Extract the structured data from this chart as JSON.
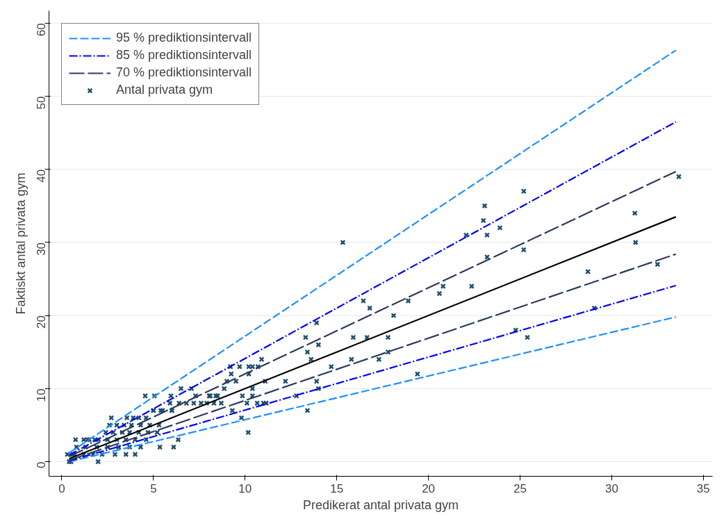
{
  "chart_data": {
    "type": "scatter",
    "xlabel": "Predikerat antal privata gym",
    "ylabel": "Faktiskt antal privata gym",
    "xlim": [
      -0.7,
      35.5
    ],
    "ylim": [
      -2,
      61.7
    ],
    "xticks": [
      0,
      5,
      10,
      15,
      20,
      25,
      30,
      35
    ],
    "yticks": [
      0,
      10,
      20,
      30,
      40,
      50,
      60
    ],
    "grid": "y",
    "legend": "top left",
    "series": [
      {
        "name": "95 % prediktionsintervall",
        "type": "line",
        "line_style": "dashed",
        "color": "#1e90ff",
        "x": [
          0.4,
          33.5
        ],
        "values": [
          1.2,
          56.3
        ]
      },
      {
        "type": "line",
        "line_style": "dashed",
        "color": "#1e90ff",
        "x": [
          0.4,
          33.5
        ],
        "values": [
          0,
          19.8
        ]
      },
      {
        "name": "85 % prediktionsintervall",
        "type": "line",
        "line_style": "dashdot",
        "color": "#0000ff",
        "x": [
          0.4,
          33.5
        ],
        "values": [
          0.9,
          46.5
        ]
      },
      {
        "type": "line",
        "line_style": "dashdot",
        "color": "#0000ff",
        "x": [
          0.4,
          33.5
        ],
        "values": [
          0.1,
          24.1
        ]
      },
      {
        "name": "70 % prediktionsintervall",
        "type": "line",
        "line_style": "longdash",
        "color": "#2a3a5c",
        "x": [
          0.4,
          33.5
        ],
        "values": [
          0.7,
          39.7
        ]
      },
      {
        "type": "line",
        "line_style": "longdash",
        "color": "#2a3a5c",
        "x": [
          0.4,
          33.5
        ],
        "values": [
          0.2,
          28.4
        ]
      },
      {
        "type": "line",
        "line_style": "solid",
        "color": "#000000",
        "x": [
          0.4,
          33.5
        ],
        "values": [
          0.4,
          33.5
        ]
      },
      {
        "name": "Antal privata gym",
        "marker": "cross",
        "color": "#1f4e6e",
        "x": [
          15.33,
          22.06,
          23.07,
          23.0,
          23.2,
          23.2,
          23.9,
          25.2,
          25.2,
          33.66,
          31.26,
          31.3,
          32.5,
          28.7,
          29.05,
          24.76,
          25.4,
          22.36,
          20.8,
          20.6,
          18.9,
          18.1,
          16.45,
          16.8,
          16.65,
          15.9,
          15.8,
          17.3,
          17.8,
          17.8,
          19.4,
          14.7,
          13.9,
          14.0,
          13.3,
          13.4,
          13.6,
          13.9,
          14.0,
          13.4,
          12.8,
          12.2,
          11.1,
          11.0,
          10.66,
          10.9,
          10.7,
          10.4,
          10.2,
          10.2,
          10.17,
          10.4,
          10.4,
          9.85,
          9.7,
          9.2,
          9.24,
          9.0,
          9.5,
          9.3,
          8.86,
          8.04,
          8.4,
          8.3,
          8.7,
          10.1,
          11.15,
          9.8,
          4.55,
          5.05,
          5.95,
          6.5,
          7.07,
          7.3,
          8.1,
          8.5,
          5.9,
          5.0,
          5.4,
          6.0,
          6.4,
          6.8,
          7.2,
          7.6,
          7.9,
          2.7,
          3.55,
          3.9,
          4.2,
          4.6,
          5.0,
          5.5,
          6.0,
          2.6,
          3.0,
          3.4,
          3.8,
          4.3,
          4.8,
          5.3,
          2.4,
          2.8,
          3.3,
          3.7,
          4.2,
          4.7,
          5.2,
          1.5,
          2.0,
          2.5,
          3.0,
          3.5,
          4.0,
          4.6,
          0.75,
          1.2,
          1.4,
          1.8,
          0.8,
          1.3,
          1.9,
          2.5,
          3.1,
          3.7,
          4.3,
          5.35,
          6.1,
          6.35,
          0.3,
          0.7,
          1.2,
          1.7,
          2.2,
          2.9,
          4.0,
          3.5,
          1.98,
          0.4,
          0.5,
          0.6
        ],
        "values": [
          30,
          31,
          35,
          33,
          31,
          28,
          32,
          37,
          29,
          39,
          34,
          30,
          27,
          26,
          21,
          18,
          17,
          24,
          24,
          23,
          22,
          20,
          22,
          21,
          17,
          17,
          14,
          14,
          17,
          15,
          12,
          13,
          19,
          16,
          17,
          15,
          14,
          11,
          10,
          7,
          9,
          11,
          11,
          8,
          8,
          14,
          13,
          13,
          12,
          13,
          4,
          9,
          10,
          9,
          13,
          13,
          12,
          11,
          11,
          7,
          10,
          9,
          9,
          8,
          8,
          8,
          8,
          6,
          9,
          9,
          9,
          10,
          10,
          9,
          9,
          9,
          8,
          7,
          7,
          7,
          8,
          8,
          8,
          8,
          8,
          6,
          6,
          6,
          6,
          6,
          7,
          7,
          7,
          5,
          5,
          5,
          5,
          5,
          5,
          5,
          4,
          4,
          4,
          4,
          4,
          4,
          4,
          3,
          3,
          3,
          3,
          3,
          3,
          3,
          3,
          3,
          3,
          3,
          2,
          2,
          2,
          2,
          2,
          2,
          2,
          2,
          2,
          3,
          1,
          1,
          1,
          1,
          1,
          1,
          1,
          1,
          0,
          0,
          0,
          1
        ]
      }
    ]
  }
}
